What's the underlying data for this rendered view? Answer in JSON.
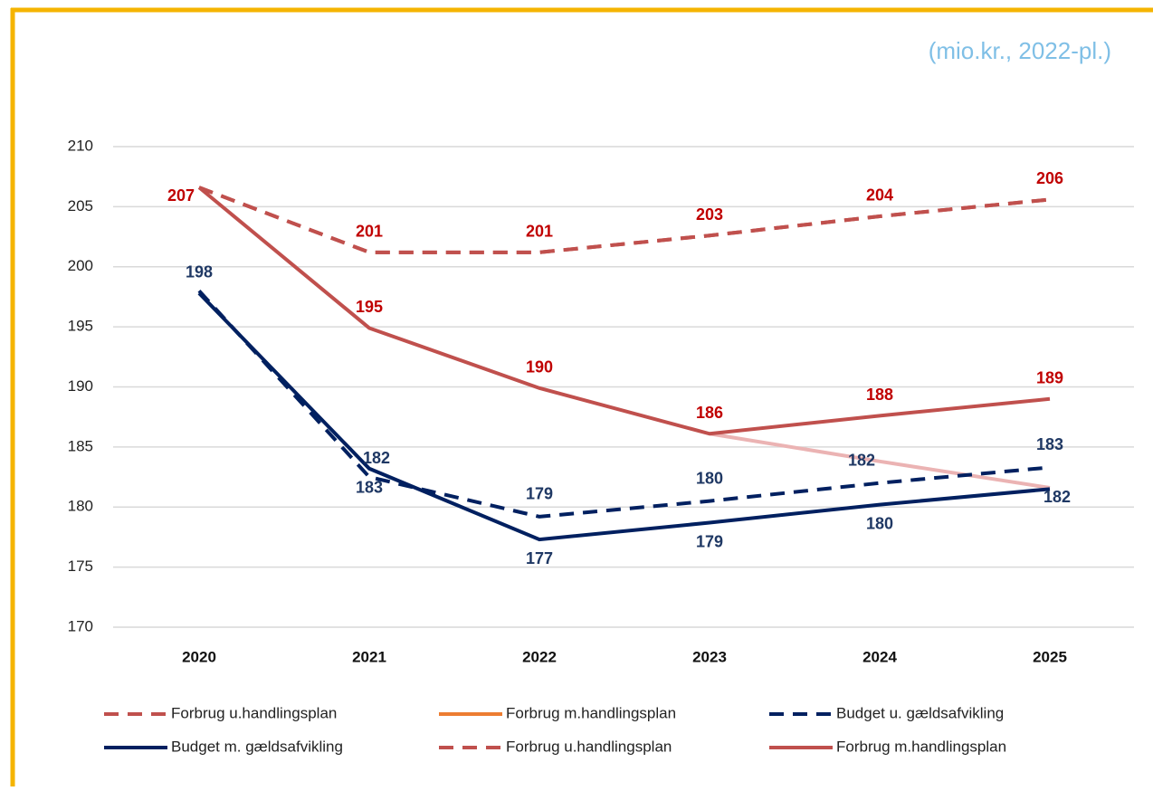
{
  "chart_data": {
    "type": "line",
    "subtitle": "(mio.kr., 2022-pl.)",
    "categories": [
      "2020",
      "2021",
      "2022",
      "2023",
      "2024",
      "2025"
    ],
    "ylim": [
      170,
      210
    ],
    "yticks": [
      170,
      175,
      180,
      185,
      190,
      195,
      200,
      205,
      210
    ],
    "grid": true,
    "legend": "bottom",
    "series": [
      {
        "name": "Forbrug u.handlingsplan",
        "color": "#c0504d",
        "dash": true,
        "values": [
          206.6,
          201.2,
          201.2,
          202.6,
          204.2,
          205.6
        ],
        "value_labels": [
          "207",
          "201",
          "201",
          "203",
          "204",
          "206"
        ]
      },
      {
        "name": "Forbrug m.handlingsplan",
        "color": "#ebb3b3",
        "dash": false,
        "values": [
          null,
          null,
          null,
          186.1,
          183.8,
          181.6
        ]
      },
      {
        "name": "Budget u. gældsafvikling",
        "color": "#002060",
        "dash": true,
        "values": [
          198.0,
          182.5,
          179.2,
          180.5,
          182.0,
          183.3
        ],
        "value_labels": [
          null,
          "182",
          "179",
          "180",
          "182",
          "183"
        ]
      },
      {
        "name": "Budget m. gældsafvikling",
        "color": "#002060",
        "dash": false,
        "values": [
          197.8,
          183.2,
          177.3,
          178.7,
          180.2,
          181.5
        ],
        "value_labels": [
          "198",
          "183",
          "177",
          "179",
          "180",
          "182"
        ]
      },
      {
        "name": "Forbrug u.handlingsplan",
        "color": "#c0504d",
        "dash": true,
        "values": [
          206.6,
          201.2,
          201.2,
          202.6,
          204.2,
          205.6
        ]
      },
      {
        "name": "Forbrug m.handlingsplan",
        "color": "#c0504d",
        "dash": false,
        "values": [
          206.6,
          194.9,
          189.9,
          186.1,
          187.6,
          189.0
        ],
        "value_labels": [
          null,
          "195",
          "190",
          "186",
          "188",
          "189"
        ]
      }
    ]
  }
}
